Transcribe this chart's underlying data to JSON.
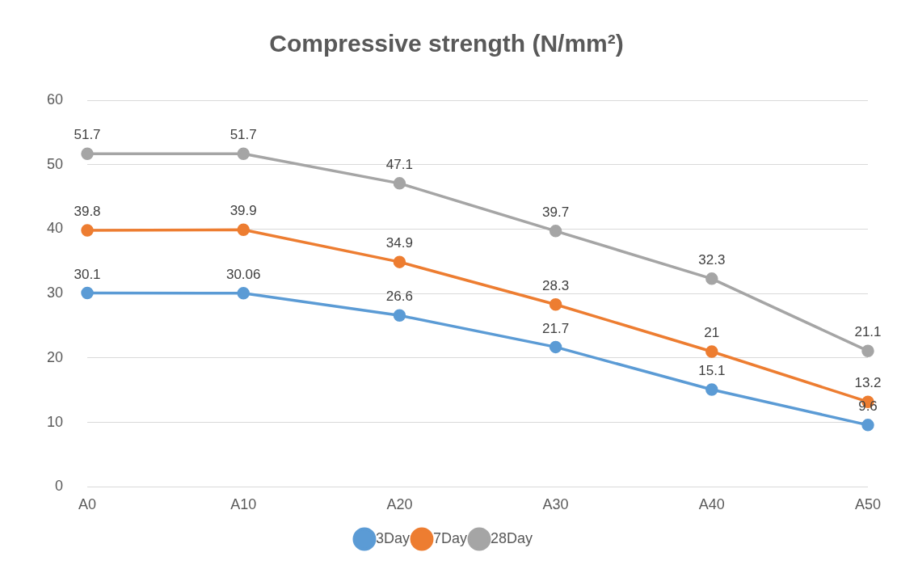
{
  "chart_data": {
    "type": "line",
    "title": "Compressive strength (N/mm²)",
    "categories": [
      "A0",
      "A10",
      "A20",
      "A30",
      "A40",
      "A50"
    ],
    "series": [
      {
        "name": "3Day",
        "color": "#5b9bd5",
        "values": [
          30.1,
          30.06,
          26.6,
          21.7,
          15.1,
          9.6
        ]
      },
      {
        "name": "7Day",
        "color": "#ed7d31",
        "values": [
          39.8,
          39.9,
          34.9,
          28.3,
          21,
          13.2
        ]
      },
      {
        "name": "28Day",
        "color": "#a5a5a5",
        "values": [
          51.7,
          51.7,
          47.1,
          39.7,
          32.3,
          21.1
        ]
      }
    ],
    "ylim": [
      0,
      60
    ],
    "yticks": [
      0,
      10,
      20,
      30,
      40,
      50,
      60
    ],
    "grid": "y",
    "legend": "bottom",
    "marker": "circle",
    "data_labels": true
  }
}
